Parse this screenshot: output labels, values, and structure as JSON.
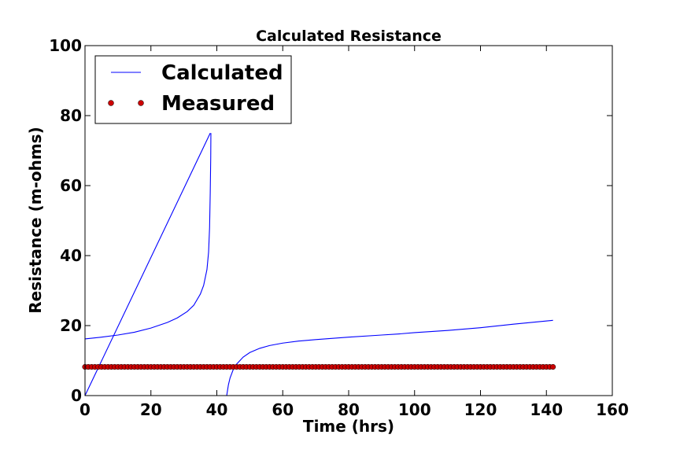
{
  "chart_data": {
    "type": "line",
    "title": "Calculated Resistance",
    "xlabel": "Time (hrs)",
    "ylabel": "Resistance (m-ohms)",
    "xlim": [
      0,
      160
    ],
    "ylim": [
      0,
      100
    ],
    "xticks": [
      0,
      20,
      40,
      60,
      80,
      100,
      120,
      140,
      160
    ],
    "yticks": [
      0,
      20,
      40,
      60,
      80,
      100
    ],
    "grid": false,
    "legend_position": "top-left",
    "series": [
      {
        "name": "Calculated",
        "style": "line",
        "color": "#0000ff",
        "segments": [
          [
            [
              0,
              0
            ],
            [
              38,
              75
            ]
          ],
          [
            [
              0,
              16.2
            ],
            [
              5,
              16.7
            ],
            [
              10,
              17.3
            ],
            [
              15,
              18.1
            ],
            [
              20,
              19.3
            ],
            [
              25,
              20.9
            ],
            [
              28,
              22.2
            ],
            [
              31,
              24.0
            ],
            [
              33,
              25.8
            ],
            [
              35,
              29.0
            ],
            [
              36,
              31.5
            ],
            [
              37,
              36.0
            ],
            [
              37.5,
              41.0
            ],
            [
              37.8,
              48.0
            ],
            [
              38,
              58.0
            ],
            [
              38.15,
              68.0
            ],
            [
              38.2,
              75.0
            ]
          ],
          [
            [
              43,
              0
            ],
            [
              43.5,
              3.0
            ],
            [
              44,
              5.0
            ],
            [
              45,
              7.5
            ],
            [
              46,
              9.0
            ],
            [
              48,
              11.0
            ],
            [
              50,
              12.3
            ],
            [
              53,
              13.5
            ],
            [
              56,
              14.3
            ],
            [
              60,
              15.0
            ],
            [
              65,
              15.6
            ],
            [
              70,
              16.0
            ],
            [
              80,
              16.7
            ],
            [
              90,
              17.3
            ],
            [
              95,
              17.6
            ],
            [
              100,
              18.0
            ],
            [
              110,
              18.6
            ],
            [
              120,
              19.4
            ],
            [
              130,
              20.4
            ],
            [
              142,
              21.5
            ]
          ]
        ]
      },
      {
        "name": "Measured",
        "style": "markers",
        "color": "#cc0000",
        "x_range": [
          0,
          142
        ],
        "x_step": 1,
        "value": 8.2
      }
    ]
  }
}
